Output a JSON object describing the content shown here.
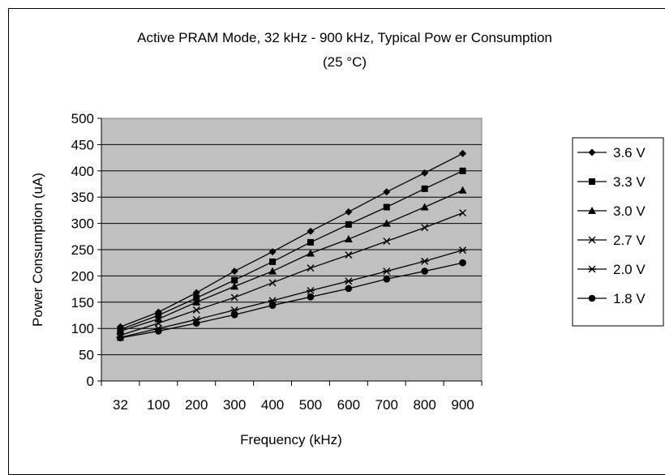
{
  "chart_data": {
    "type": "line",
    "title_line1": "Active PRAM Mode, 32 kHz - 900 kHz, Typical Pow er Consumption",
    "title_line2": "(25 °C)",
    "xlabel": "Frequency (kHz)",
    "ylabel": "Power Consumption (uA)",
    "ylim": [
      0,
      500
    ],
    "yticks": [
      0,
      50,
      100,
      150,
      200,
      250,
      300,
      350,
      400,
      450,
      500
    ],
    "categories": [
      "32",
      "100",
      "200",
      "300",
      "400",
      "500",
      "600",
      "700",
      "800",
      "900"
    ],
    "grid": "horizontal",
    "plot_background": "#c0c0c0",
    "legend_position": "right",
    "series": [
      {
        "name": "3.6 V",
        "marker": "diamond",
        "values": [
          103,
          131,
          168,
          209,
          246,
          285,
          322,
          360,
          396,
          433
        ]
      },
      {
        "name": "3.3 V",
        "marker": "square",
        "values": [
          98,
          125,
          158,
          192,
          227,
          264,
          298,
          331,
          366,
          400
        ]
      },
      {
        "name": "3.0 V",
        "marker": "triangle",
        "values": [
          95,
          118,
          150,
          180,
          209,
          243,
          270,
          300,
          331,
          363
        ]
      },
      {
        "name": "2.7 V",
        "marker": "x",
        "values": [
          87,
          110,
          135,
          159,
          187,
          215,
          240,
          266,
          292,
          320
        ]
      },
      {
        "name": "2.0 V",
        "marker": "star",
        "values": [
          83,
          100,
          117,
          135,
          153,
          172,
          190,
          209,
          228,
          249
        ]
      },
      {
        "name": "1.8 V",
        "marker": "circle",
        "values": [
          82,
          95,
          110,
          126,
          144,
          160,
          176,
          194,
          209,
          225
        ]
      }
    ]
  }
}
